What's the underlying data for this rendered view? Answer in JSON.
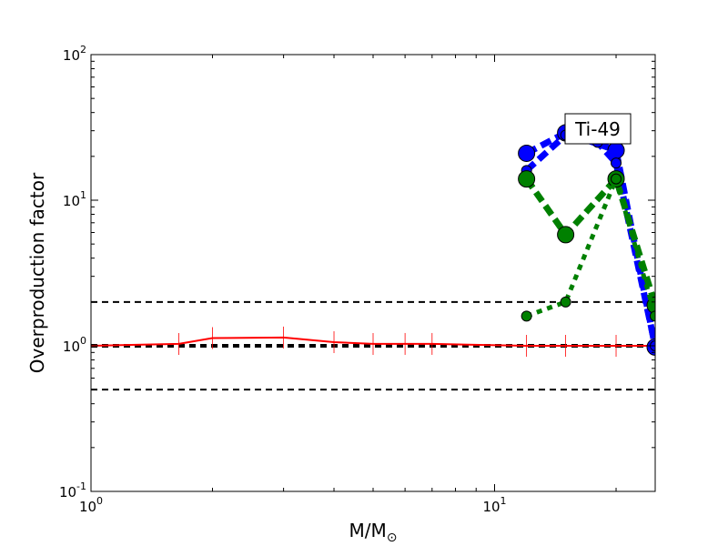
{
  "chart_data": {
    "type": "line",
    "xlabel": "M/M",
    "xlabel_sub": "⊙",
    "ylabel": "Overproduction factor",
    "xscale": "log",
    "yscale": "log",
    "xlim": [
      1,
      25
    ],
    "ylim": [
      0.1,
      100
    ],
    "x_ticks": [
      {
        "value": 1,
        "base": "10",
        "exp": "0"
      },
      {
        "value": 10,
        "base": "10",
        "exp": "1"
      }
    ],
    "y_ticks": [
      {
        "value": 0.1,
        "base": "10",
        "exp": "-1"
      },
      {
        "value": 1,
        "base": "10",
        "exp": "0"
      },
      {
        "value": 10,
        "base": "10",
        "exp": "1"
      },
      {
        "value": 100,
        "base": "10",
        "exp": "2"
      }
    ],
    "reference_lines": [
      0.5,
      1,
      2
    ],
    "annotation": {
      "text": "Ti-49",
      "x": 18,
      "y": 30
    },
    "series": [
      {
        "style": "solid",
        "color": "#ff0000",
        "x": [
          1,
          1.65,
          2,
          3,
          4,
          5,
          6,
          7,
          12,
          15,
          20,
          25
        ],
        "y": [
          1.0,
          1.03,
          1.13,
          1.14,
          1.06,
          1.03,
          1.03,
          1.03,
          1.0,
          1.0,
          1.0,
          1.0
        ]
      },
      {
        "style": "dashed-thick",
        "color": "#0000ff",
        "marker_size": "large",
        "x": [
          12,
          15,
          20,
          25
        ],
        "y": [
          21,
          29,
          22,
          0.98
        ]
      },
      {
        "style": "dashed-thick",
        "color": "#0000ff",
        "marker_size": "small",
        "x": [
          12,
          15,
          18,
          20,
          25
        ],
        "y": [
          16,
          28,
          25,
          18,
          1.0
        ]
      },
      {
        "style": "dashed-thick",
        "color": "#008000",
        "marker_size": "large",
        "x": [
          12,
          15,
          20,
          25
        ],
        "y": [
          14,
          5.8,
          14,
          1.9
        ]
      },
      {
        "style": "dotted-thick",
        "color": "#008000",
        "marker_size": "small",
        "x": [
          12,
          15,
          20,
          25
        ],
        "y": [
          1.6,
          2.0,
          14,
          1.6
        ]
      }
    ]
  }
}
